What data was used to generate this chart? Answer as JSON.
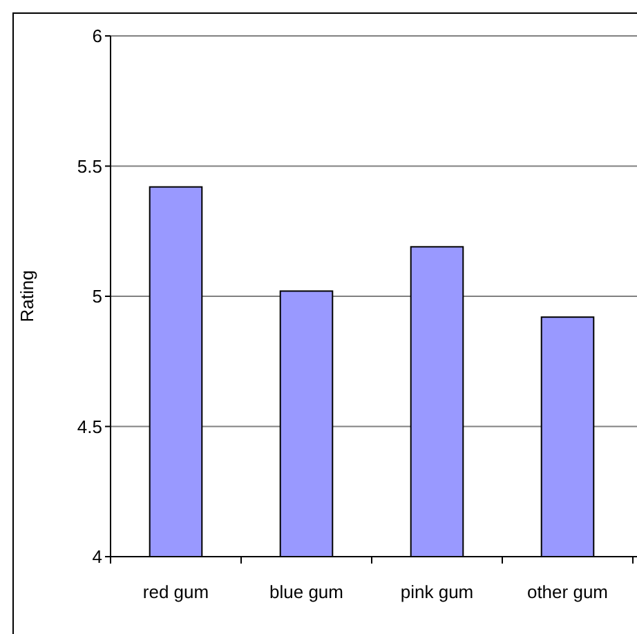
{
  "chart_data": {
    "type": "bar",
    "ylabel": "Rating",
    "categories": [
      "red gum",
      "blue gum",
      "pink gum",
      "other gum"
    ],
    "values": [
      5.42,
      5.02,
      5.19,
      4.92
    ],
    "color": "#9999ff",
    "ylim": [
      4,
      6
    ],
    "yticks": [
      4,
      4.5,
      5,
      5.5,
      6
    ],
    "grid": "y"
  }
}
